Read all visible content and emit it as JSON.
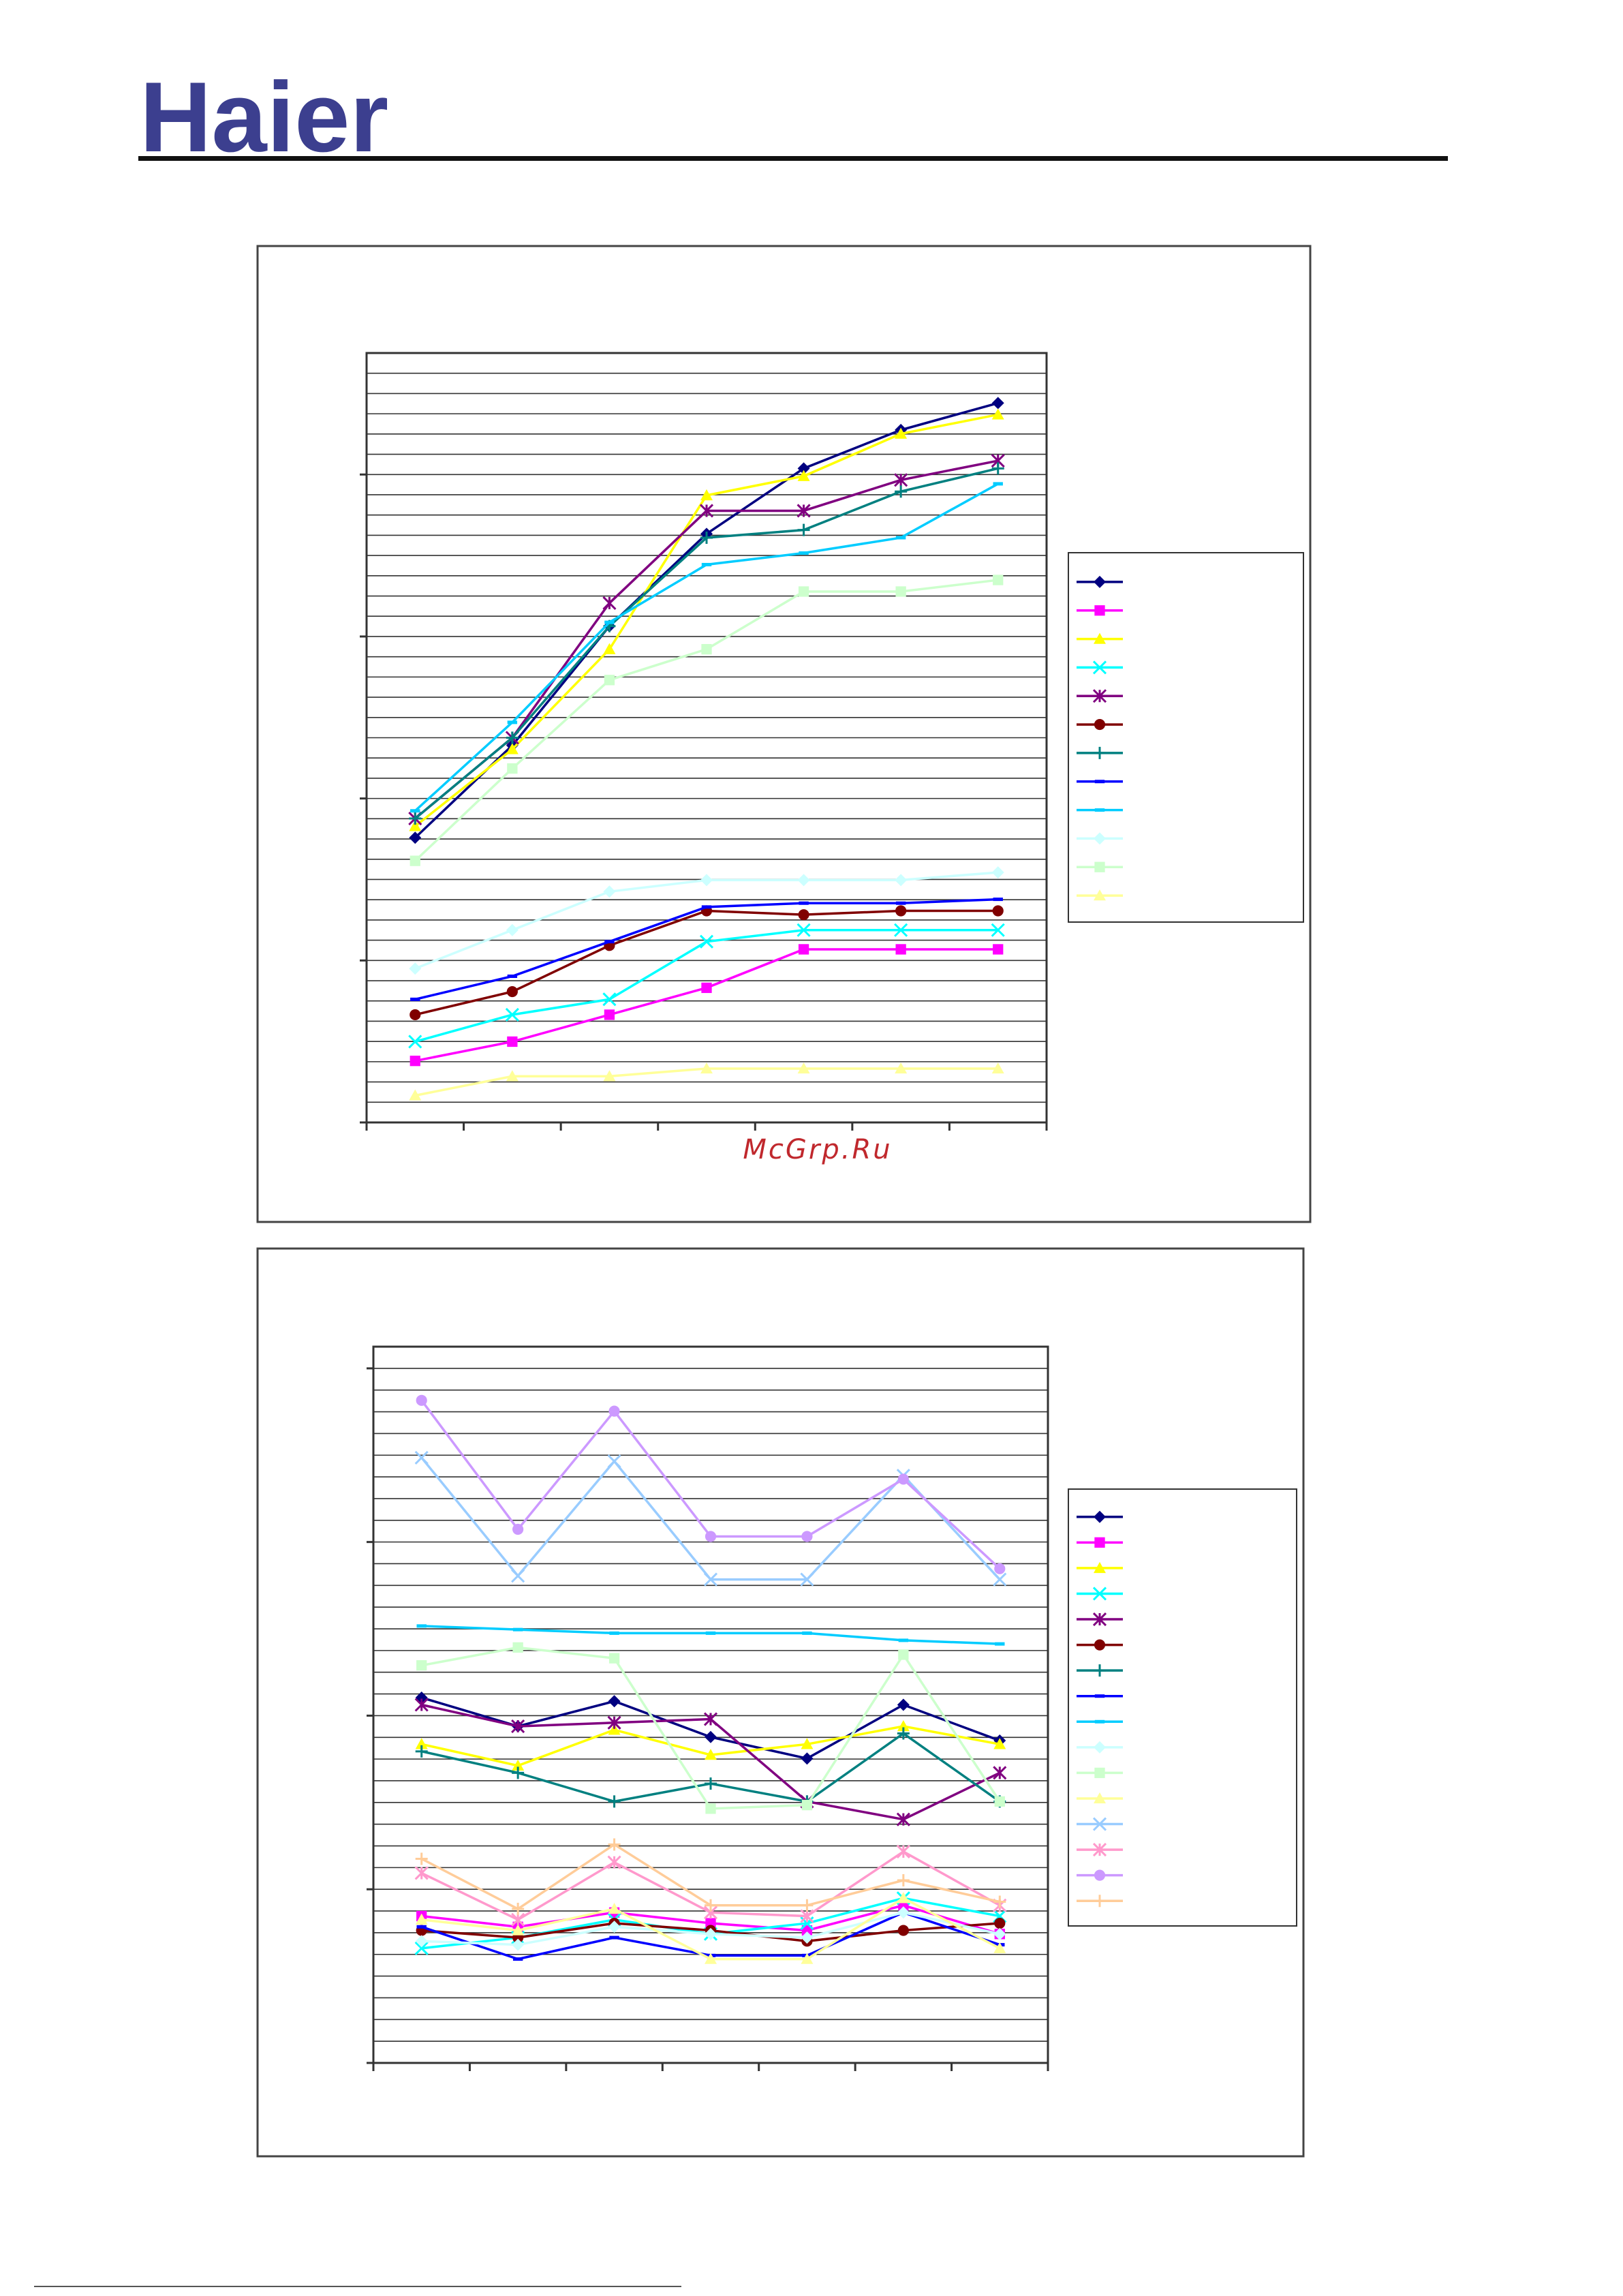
{
  "brand": {
    "logo_text": "Haier",
    "logo_color": "#3c3f8f"
  },
  "watermark": {
    "text": "McGrp.Ru",
    "color": "#c0282d"
  },
  "colors": {
    "navy": "#000080",
    "magenta": "#ff00ff",
    "yellow": "#ffff00",
    "cyan": "#00ffff",
    "purple": "#800080",
    "maroon": "#800000",
    "teal": "#008080",
    "blue": "#0000ff",
    "skyblue": "#00ccff",
    "palecyan": "#ccffff",
    "palegreen": "#ccffcc",
    "paleyellow": "#ffff99",
    "lightblue": "#99ccff",
    "pink": "#ff99cc",
    "lavender": "#cc99ff",
    "peach": "#ffcc99"
  },
  "chart_data": [
    {
      "type": "line",
      "title": "",
      "xlabel": "",
      "ylabel": "",
      "x": [
        1,
        2,
        3,
        4,
        5,
        6,
        7
      ],
      "xlim": [
        0.5,
        7.5
      ],
      "ylim": [
        0,
        100
      ],
      "grid": true,
      "legend": "right",
      "series": [
        {
          "color": "#000080",
          "marker": "diamond",
          "values": [
            37,
            49,
            64.5,
            76.5,
            85,
            90,
            93.5
          ]
        },
        {
          "color": "#ff00ff",
          "marker": "square",
          "values": [
            8,
            10.5,
            14,
            17.5,
            22.5,
            22.5,
            22.5
          ]
        },
        {
          "color": "#ffff00",
          "marker": "triangle",
          "values": [
            38.5,
            48.5,
            61.5,
            81.5,
            84,
            89.5,
            92
          ]
        },
        {
          "color": "#00ffff",
          "marker": "x",
          "values": [
            10.5,
            14,
            16,
            23.5,
            25,
            25,
            25
          ]
        },
        {
          "color": "#800080",
          "marker": "star",
          "values": [
            39.5,
            50,
            67.5,
            79.5,
            79.5,
            83.5,
            86
          ]
        },
        {
          "color": "#800000",
          "marker": "circle",
          "values": [
            14,
            17,
            23,
            27.5,
            27,
            27.5,
            27.5
          ]
        },
        {
          "color": "#008080",
          "marker": "plus",
          "values": [
            39.5,
            50,
            64.5,
            76,
            77,
            82,
            85
          ]
        },
        {
          "color": "#0000ff",
          "marker": "dash",
          "values": [
            16,
            19,
            23.5,
            28,
            28.5,
            28.5,
            29
          ]
        },
        {
          "color": "#00ccff",
          "marker": "dash",
          "values": [
            40.5,
            52,
            65,
            72.5,
            74,
            76,
            83
          ]
        },
        {
          "color": "#ccffff",
          "marker": "diamond",
          "values": [
            20,
            25,
            30,
            31.5,
            31.5,
            31.5,
            32.5
          ]
        },
        {
          "color": "#ccffcc",
          "marker": "square",
          "values": [
            34,
            46,
            57.5,
            61.5,
            69,
            69,
            70.5
          ]
        },
        {
          "color": "#ffff99",
          "marker": "triangle",
          "values": [
            3.5,
            6,
            6,
            7,
            7,
            7,
            7
          ]
        }
      ]
    },
    {
      "type": "line",
      "title": "",
      "xlabel": "",
      "ylabel": "",
      "x": [
        1,
        2,
        3,
        4,
        5,
        6,
        7
      ],
      "xlim": [
        0.5,
        7.5
      ],
      "ylim": [
        0,
        100
      ],
      "grid": true,
      "legend": "right",
      "series": [
        {
          "color": "#000080",
          "marker": "diamond",
          "values": [
            51,
            47,
            50.5,
            45.5,
            42.5,
            50,
            45
          ]
        },
        {
          "color": "#ff00ff",
          "marker": "square",
          "values": [
            20.5,
            19,
            21,
            19.5,
            18.5,
            22,
            18
          ]
        },
        {
          "color": "#ffff00",
          "marker": "triangle",
          "values": [
            44.5,
            41.5,
            46.5,
            43,
            44.5,
            47,
            44.5
          ]
        },
        {
          "color": "#00ffff",
          "marker": "x",
          "values": [
            16,
            17.5,
            20,
            18,
            19.5,
            23,
            20.5
          ]
        },
        {
          "color": "#800080",
          "marker": "star",
          "values": [
            50,
            47,
            47.5,
            48,
            36.5,
            34,
            40.5
          ]
        },
        {
          "color": "#800000",
          "marker": "circle",
          "values": [
            18.5,
            17.5,
            19.5,
            18.5,
            17,
            18.5,
            19.5
          ]
        },
        {
          "color": "#008080",
          "marker": "plus",
          "values": [
            43.5,
            40.5,
            36.5,
            39,
            36.5,
            46,
            36.5
          ]
        },
        {
          "color": "#0000ff",
          "marker": "dash",
          "values": [
            19,
            14.5,
            17.5,
            15,
            15,
            21,
            16.5
          ]
        },
        {
          "color": "#00ccff",
          "marker": "dash",
          "values": [
            61,
            60.5,
            60,
            60,
            60,
            59,
            58.5
          ]
        },
        {
          "color": "#ccffff",
          "marker": "diamond",
          "values": [
            17,
            16.5,
            19,
            18,
            17.5,
            21,
            18
          ]
        },
        {
          "color": "#ccffcc",
          "marker": "square",
          "values": [
            55.5,
            58,
            56.5,
            35.5,
            36,
            57,
            36.5
          ]
        },
        {
          "color": "#ffff99",
          "marker": "triangle",
          "values": [
            20,
            18.5,
            21.5,
            14.5,
            14.5,
            23,
            16
          ]
        },
        {
          "color": "#99ccff",
          "marker": "x",
          "values": [
            84.5,
            68,
            84,
            67.5,
            67.5,
            82,
            67.5
          ]
        },
        {
          "color": "#ff99cc",
          "marker": "star",
          "values": [
            26.5,
            20,
            28,
            21,
            20.5,
            29.5,
            22
          ]
        },
        {
          "color": "#cc99ff",
          "marker": "circle",
          "values": [
            92.5,
            74.5,
            91,
            73.5,
            73.5,
            81.5,
            69
          ]
        },
        {
          "color": "#ffcc99",
          "marker": "plus",
          "values": [
            28.5,
            21.5,
            30.5,
            22,
            22,
            25.5,
            22.5
          ]
        }
      ]
    }
  ]
}
